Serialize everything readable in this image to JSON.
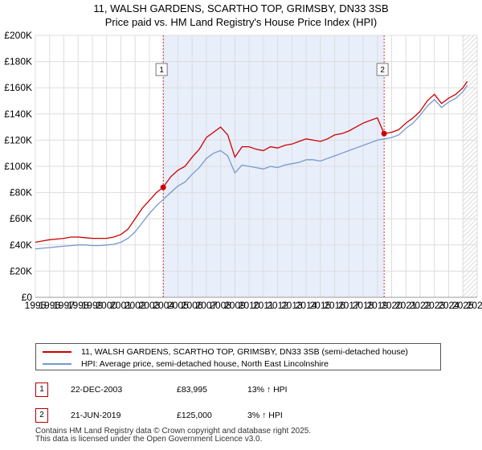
{
  "title_line1": "11, WALSH GARDENS, SCARTHO TOP, GRIMSBY, DN33 3SB",
  "title_line2": "Price paid vs. HM Land Registry's House Price Index (HPI)",
  "chart_data": {
    "type": "line",
    "title": "11, WALSH GARDENS, SCARTHO TOP, GRIMSBY, DN33 3SB — Price paid vs. HM Land Registry's House Price Index (HPI)",
    "xlabel": "",
    "ylabel": "",
    "xlim": [
      1995,
      2026
    ],
    "ylim": [
      0,
      200000
    ],
    "y_ticks": [
      0,
      20000,
      40000,
      60000,
      80000,
      100000,
      120000,
      140000,
      160000,
      180000,
      200000
    ],
    "y_tick_labels": [
      "£0",
      "£20K",
      "£40K",
      "£60K",
      "£80K",
      "£100K",
      "£120K",
      "£140K",
      "£160K",
      "£180K",
      "£200K"
    ],
    "x_ticks": [
      1995,
      1996,
      1997,
      1998,
      1999,
      2000,
      2001,
      2002,
      2003,
      2004,
      2005,
      2006,
      2007,
      2008,
      2009,
      2010,
      2011,
      2012,
      2013,
      2014,
      2015,
      2016,
      2017,
      2018,
      2019,
      2020,
      2021,
      2022,
      2023,
      2024,
      2025,
      2026
    ],
    "x_tick_labels": [
      "1995",
      "1996",
      "1997",
      "1998",
      "1999",
      "2000",
      "2001",
      "2002",
      "2003",
      "2004",
      "2005",
      "2006",
      "2007",
      "2008",
      "2009",
      "2010",
      "2011",
      "2012",
      "2013",
      "2014",
      "2015",
      "2016",
      "2017",
      "2018",
      "2019",
      "2020",
      "2021",
      "2022",
      "2023",
      "2024",
      "2025",
      "2026"
    ],
    "highlight_span": [
      2003.97,
      2019.47
    ],
    "hatched_after": 2025.0,
    "series": [
      {
        "name": "11, WALSH GARDENS, SCARTHO TOP, GRIMSBY, DN33 3SB (semi-detached house)",
        "color": "#cc0000",
        "x": [
          1995.0,
          1995.5,
          1996.0,
          1996.5,
          1997.0,
          1997.5,
          1998.0,
          1998.5,
          1999.0,
          1999.5,
          2000.0,
          2000.5,
          2001.0,
          2001.5,
          2002.0,
          2002.5,
          2003.0,
          2003.5,
          2003.97,
          2004.5,
          2005.0,
          2005.5,
          2006.0,
          2006.5,
          2007.0,
          2007.5,
          2008.0,
          2008.5,
          2009.0,
          2009.5,
          2010.0,
          2010.5,
          2011.0,
          2011.5,
          2012.0,
          2012.5,
          2013.0,
          2013.5,
          2014.0,
          2014.5,
          2015.0,
          2015.5,
          2016.0,
          2016.5,
          2017.0,
          2017.5,
          2018.0,
          2018.5,
          2019.0,
          2019.47,
          2020.0,
          2020.5,
          2021.0,
          2021.5,
          2022.0,
          2022.5,
          2023.0,
          2023.5,
          2024.0,
          2024.5,
          2025.0,
          2025.3
        ],
        "values": [
          42000,
          43000,
          44000,
          44500,
          45000,
          46000,
          46000,
          45500,
          45000,
          45000,
          45000,
          46000,
          48000,
          52000,
          60000,
          68000,
          74000,
          80000,
          83995,
          92000,
          97000,
          100000,
          107000,
          113000,
          122000,
          126000,
          130000,
          124000,
          107000,
          115000,
          115000,
          113000,
          112000,
          115000,
          114000,
          116000,
          117000,
          119000,
          121000,
          120000,
          119000,
          121000,
          124000,
          125000,
          127000,
          130000,
          133000,
          135000,
          137000,
          125000,
          126000,
          128000,
          133000,
          137000,
          142000,
          150000,
          155000,
          148000,
          152000,
          155000,
          160000,
          165000
        ]
      },
      {
        "name": "HPI: Average price, semi-detached house, North East Lincolnshire",
        "color": "#7799cc",
        "x": [
          1995.0,
          1995.5,
          1996.0,
          1996.5,
          1997.0,
          1997.5,
          1998.0,
          1998.5,
          1999.0,
          1999.5,
          2000.0,
          2000.5,
          2001.0,
          2001.5,
          2002.0,
          2002.5,
          2003.0,
          2003.5,
          2004.0,
          2004.5,
          2005.0,
          2005.5,
          2006.0,
          2006.5,
          2007.0,
          2007.5,
          2008.0,
          2008.5,
          2009.0,
          2009.5,
          2010.0,
          2010.5,
          2011.0,
          2011.5,
          2012.0,
          2012.5,
          2013.0,
          2013.5,
          2014.0,
          2014.5,
          2015.0,
          2015.5,
          2016.0,
          2016.5,
          2017.0,
          2017.5,
          2018.0,
          2018.5,
          2019.0,
          2019.5,
          2020.0,
          2020.5,
          2021.0,
          2021.5,
          2022.0,
          2022.5,
          2023.0,
          2023.5,
          2024.0,
          2024.5,
          2025.0,
          2025.3
        ],
        "values": [
          37000,
          37500,
          38000,
          38500,
          39000,
          39500,
          40000,
          40000,
          39500,
          39500,
          40000,
          40500,
          42000,
          45000,
          50000,
          57000,
          64000,
          70000,
          75000,
          80000,
          85000,
          88000,
          94000,
          99000,
          106000,
          110000,
          112000,
          108000,
          95000,
          101000,
          100000,
          99000,
          98000,
          100000,
          99000,
          101000,
          102000,
          103000,
          105000,
          105000,
          104000,
          106000,
          108000,
          110000,
          112000,
          114000,
          116000,
          118000,
          120000,
          121000,
          122000,
          124000,
          129000,
          133000,
          139000,
          146000,
          151000,
          145000,
          149000,
          152000,
          157000,
          162000
        ]
      }
    ],
    "sale_points": [
      {
        "label": "1",
        "x": 2003.97,
        "value": 83995
      },
      {
        "label": "2",
        "x": 2019.47,
        "value": 125000
      }
    ],
    "legend_position": "below"
  },
  "legend": {
    "entry1": "11, WALSH GARDENS, SCARTHO TOP, GRIMSBY, DN33 3SB (semi-detached house)",
    "entry2": "HPI: Average price, semi-detached house, North East Lincolnshire"
  },
  "sales": [
    {
      "num": "1",
      "date": "22-DEC-2003",
      "price": "£83,995",
      "hpi": "13% ↑ HPI"
    },
    {
      "num": "2",
      "date": "21-JUN-2019",
      "price": "£125,000",
      "hpi": "3% ↑ HPI"
    }
  ],
  "footer_line1": "Contains HM Land Registry data © Crown copyright and database right 2025.",
  "footer_line2": "This data is licensed under the Open Government Licence v3.0.",
  "colors": {
    "property_line": "#cc0000",
    "hpi_line": "#7799cc",
    "highlight_fill": "#e8eefa",
    "marker_border": "#b00000"
  }
}
